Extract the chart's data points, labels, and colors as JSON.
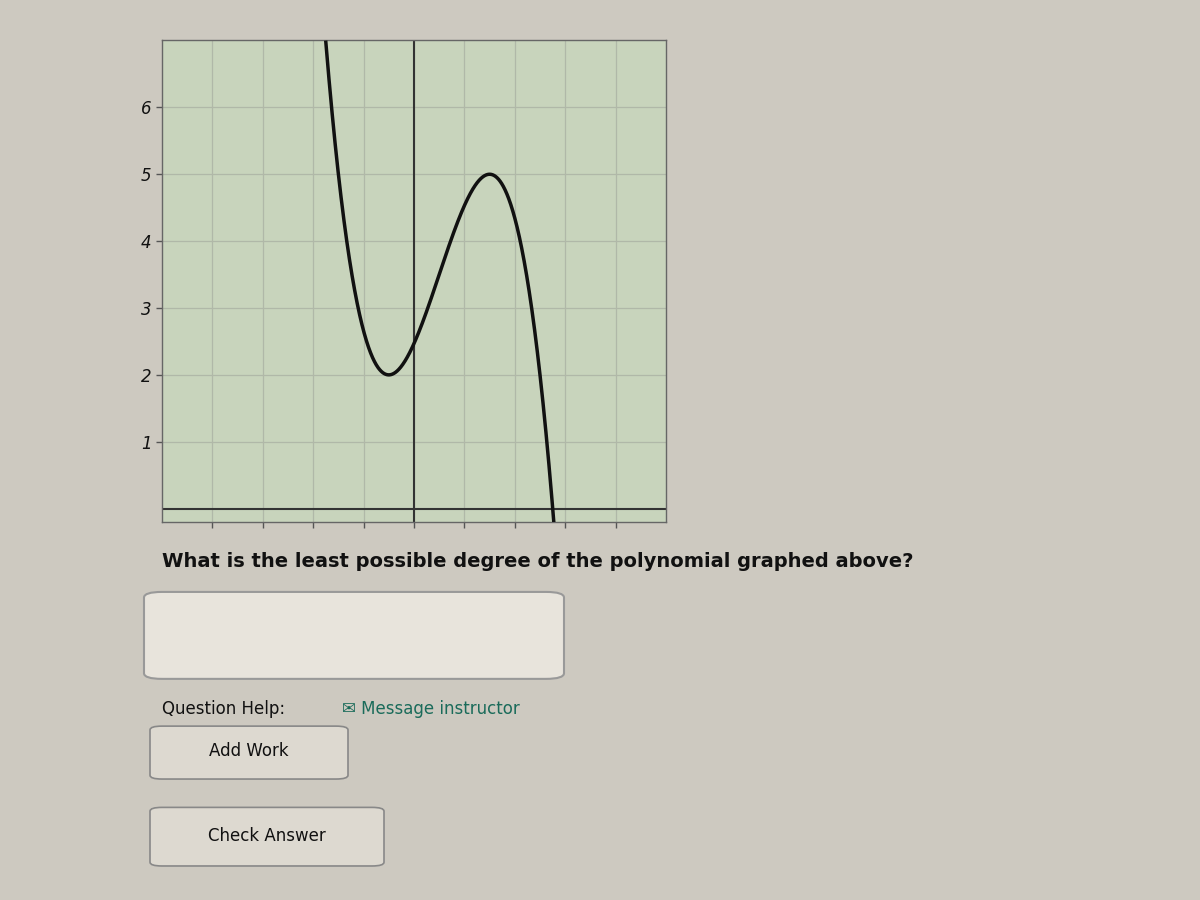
{
  "bg_color": "#cdc9c0",
  "graph_facecolor": "#c8d4bc",
  "grid_color": "#b0b8a8",
  "curve_color": "#111111",
  "curve_linewidth": 2.5,
  "xlim": [
    -5,
    5
  ],
  "ylim": [
    -0.2,
    7
  ],
  "yticks": [
    1,
    2,
    3,
    4,
    5,
    6
  ],
  "question_text": "What is the least possible degree of the polynomial graphed above?",
  "help_text": "Question Help:",
  "message_text": " Message instructor",
  "add_work_text": "Add Work",
  "check_answer_text": "Check Answer",
  "poly_a": -0.75,
  "poly_b": 2.25,
  "poly_c": 0.0,
  "poly_d": 2.0,
  "x_shift": -0.5
}
